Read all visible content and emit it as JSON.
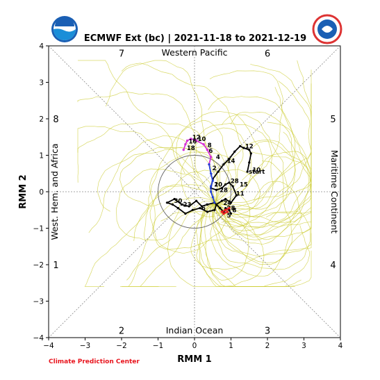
{
  "title": "ECMWF Ext (bc) | 2021-11-18 to 2021-12-19",
  "footer": "Climate Prediction Center",
  "logos": {
    "left": "noaa-logo",
    "right": "nws-logo"
  },
  "chart_data": {
    "type": "line",
    "title": "ECMWF Ext (bc) | 2021-11-18 to 2021-12-19",
    "xlabel": "RMM 1",
    "ylabel": "RMM 2",
    "xlim": [
      -4,
      4
    ],
    "ylim": [
      -4,
      4
    ],
    "xticks": [
      -4,
      -3,
      -2,
      -1,
      0,
      1,
      2,
      3,
      4
    ],
    "yticks": [
      -4,
      -3,
      -2,
      -1,
      0,
      1,
      2,
      3,
      4
    ],
    "regions": {
      "top": "Western Pacific",
      "bottom": "Indian Ocean",
      "left": "West. Hem. and Africa",
      "right": "Maritime Continent"
    },
    "phases": [
      {
        "label": "1",
        "x": -3.8,
        "y": -2
      },
      {
        "label": "2",
        "x": -2,
        "y": -3.8
      },
      {
        "label": "3",
        "x": 2,
        "y": -3.8
      },
      {
        "label": "4",
        "x": 3.8,
        "y": -2
      },
      {
        "label": "5",
        "x": 3.8,
        "y": 2
      },
      {
        "label": "6",
        "x": 2,
        "y": 3.8
      },
      {
        "label": "7",
        "x": -2,
        "y": 3.8
      },
      {
        "label": "8",
        "x": -3.8,
        "y": 2
      }
    ],
    "unit_circle_radius": 1,
    "colors": {
      "ensemble": "#cccc33",
      "observed": "#000000",
      "forecast_early": "#1f3fd6",
      "forecast_mid": "#d633d6",
      "forecast_late": "#e81e1e",
      "axes": "#000000",
      "diagonals": "#888888"
    },
    "observed": {
      "points": [
        [
          1.45,
          0.55
        ],
        [
          1.5,
          0.8
        ],
        [
          1.55,
          1.05
        ],
        [
          1.5,
          1.15
        ],
        [
          1.35,
          1.2
        ],
        [
          1.25,
          1.25
        ],
        [
          1.1,
          1.1
        ],
        [
          0.95,
          0.9
        ],
        [
          0.8,
          0.75
        ],
        [
          0.65,
          0.55
        ],
        [
          0.5,
          0.35
        ],
        [
          0.45,
          0.1
        ],
        [
          0.6,
          0.05
        ],
        [
          0.75,
          0.1
        ],
        [
          0.85,
          0.2
        ],
        [
          0.95,
          0.25
        ],
        [
          1.05,
          0.15
        ],
        [
          1.15,
          -0.1
        ],
        [
          1.0,
          -0.3
        ],
        [
          0.85,
          -0.2
        ],
        [
          0.75,
          -0.25
        ],
        [
          0.6,
          -0.35
        ],
        [
          0.55,
          -0.5
        ],
        [
          0.35,
          -0.55
        ],
        [
          0.15,
          -0.45
        ],
        [
          -0.05,
          -0.5
        ],
        [
          -0.25,
          -0.6
        ],
        [
          -0.45,
          -0.45
        ],
        [
          -0.6,
          -0.35
        ],
        [
          -0.75,
          -0.3
        ],
        [
          -0.55,
          -0.2
        ],
        [
          -0.35,
          -0.35
        ],
        [
          -0.15,
          -0.4
        ],
        [
          0.05,
          -0.25
        ],
        [
          0.2,
          -0.4
        ],
        [
          0.35,
          -0.35
        ],
        [
          0.55,
          -0.3
        ],
        [
          0.7,
          -0.45
        ],
        [
          0.8,
          -0.55
        ],
        [
          0.85,
          -0.45
        ],
        [
          0.95,
          -0.5
        ],
        [
          1.0,
          -0.6
        ]
      ],
      "labels": [
        {
          "text": "start",
          "x": 1.45,
          "y": 0.55
        },
        {
          "text": "10",
          "x": 1.55,
          "y": 0.6
        },
        {
          "text": "12",
          "x": 1.35,
          "y": 1.25
        },
        {
          "text": "14",
          "x": 0.85,
          "y": 0.85
        },
        {
          "text": "15",
          "x": 1.2,
          "y": 0.2
        },
        {
          "text": "11",
          "x": 1.1,
          "y": -0.05
        },
        {
          "text": "28",
          "x": 0.95,
          "y": 0.3
        },
        {
          "text": "20",
          "x": 0.5,
          "y": 0.2
        },
        {
          "text": "28",
          "x": 0.65,
          "y": 0.05
        },
        {
          "text": "30",
          "x": -0.6,
          "y": -0.25
        },
        {
          "text": "23",
          "x": -0.35,
          "y": -0.35
        },
        {
          "text": "28",
          "x": 0.85,
          "y": -0.45
        },
        {
          "text": "24",
          "x": 0.75,
          "y": -0.3
        },
        {
          "text": "6",
          "x": 0.15,
          "y": -0.45
        }
      ]
    },
    "forecast_mean": {
      "early": [
        [
          0.55,
          -0.3
        ],
        [
          0.5,
          -0.15
        ],
        [
          0.45,
          0.0
        ],
        [
          0.45,
          0.15
        ],
        [
          0.5,
          0.3
        ],
        [
          0.45,
          0.5
        ],
        [
          0.4,
          0.75
        ]
      ],
      "mid": [
        [
          0.4,
          0.75
        ],
        [
          0.45,
          0.95
        ],
        [
          0.35,
          1.15
        ],
        [
          0.25,
          1.3
        ],
        [
          0.05,
          1.4
        ],
        [
          -0.1,
          1.45
        ],
        [
          -0.2,
          1.4
        ],
        [
          -0.25,
          1.3
        ],
        [
          -0.3,
          1.15
        ]
      ],
      "late": [
        [
          0.95,
          -0.45
        ],
        [
          0.85,
          -0.5
        ],
        [
          0.75,
          -0.55
        ],
        [
          0.8,
          -0.6
        ],
        [
          0.9,
          -0.55
        ]
      ],
      "labels": [
        {
          "text": "2",
          "x": 0.45,
          "y": 0.65
        },
        {
          "text": "4",
          "x": 0.55,
          "y": 0.95
        },
        {
          "text": "6",
          "x": 0.35,
          "y": 1.12
        },
        {
          "text": "8",
          "x": 0.32,
          "y": 1.28
        },
        {
          "text": "10",
          "x": 0.05,
          "y": 1.45
        },
        {
          "text": "12",
          "x": -0.1,
          "y": 1.5
        },
        {
          "text": "16",
          "x": -0.2,
          "y": 1.38
        },
        {
          "text": "18",
          "x": -0.25,
          "y": 1.2
        },
        {
          "text": "1",
          "x": 0.5,
          "y": 0.2
        },
        {
          "text": "5",
          "x": 0.85,
          "y": -0.65
        },
        {
          "text": "8",
          "x": 1.0,
          "y": -0.5
        }
      ]
    },
    "ensemble_members": 51
  }
}
